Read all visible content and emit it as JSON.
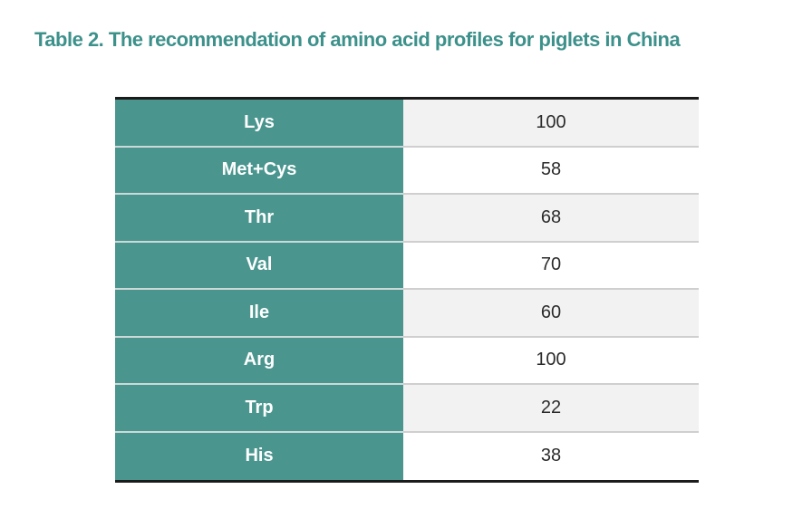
{
  "title": "Table 2. The recommendation of amino acid profiles for piglets in China",
  "chart_data": {
    "type": "table",
    "title": "Table 2. The recommendation of amino acid profiles for piglets in China",
    "categories": [
      "Lys",
      "Met+Cys",
      "Thr",
      "Val",
      "Ile",
      "Arg",
      "Trp",
      "His"
    ],
    "values": [
      100,
      58,
      68,
      70,
      60,
      100,
      22,
      38
    ],
    "rows": [
      {
        "label": "Lys",
        "value": "100"
      },
      {
        "label": "Met+Cys",
        "value": "58"
      },
      {
        "label": "Thr",
        "value": "68"
      },
      {
        "label": "Val",
        "value": "70"
      },
      {
        "label": "Ile",
        "value": "60"
      },
      {
        "label": "Arg",
        "value": "100"
      },
      {
        "label": "Trp",
        "value": "22"
      },
      {
        "label": "His",
        "value": "38"
      }
    ],
    "layout_hints": {
      "header_row": false,
      "label_column_style": "teal",
      "value_rows_alternate": [
        "#f2f2f2",
        "#ffffff"
      ],
      "top_bottom_border": "black"
    }
  },
  "colors": {
    "title_text": "#3d918b",
    "label_cell_bg": "#4a968f",
    "label_cell_text": "#ffffff",
    "value_row_alt_bg": "#f2f2f2",
    "value_row_bg": "#ffffff",
    "value_text": "#2b2b2b",
    "table_border": "#1b1b1b"
  }
}
